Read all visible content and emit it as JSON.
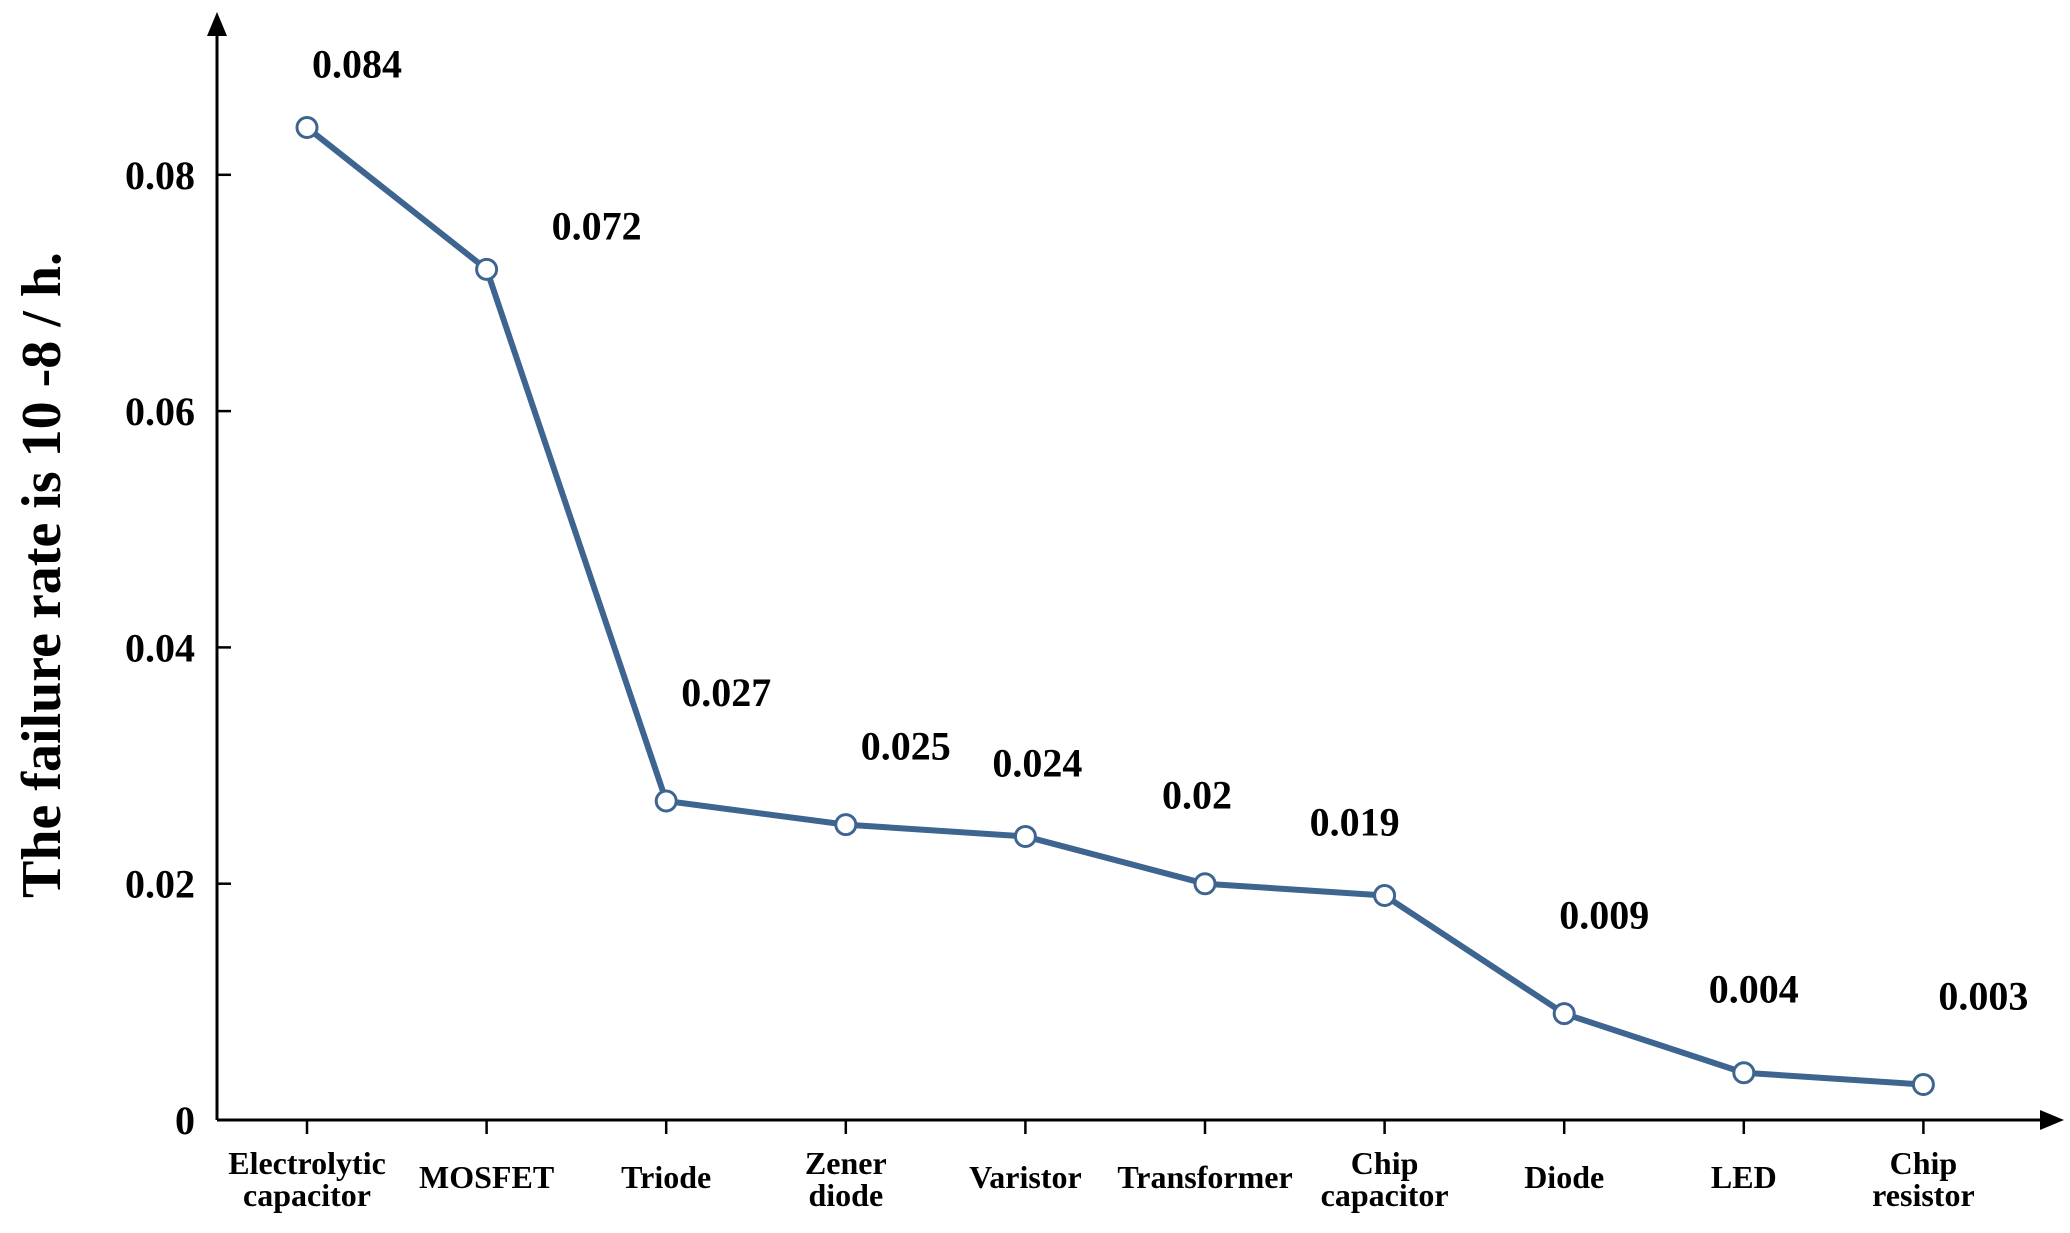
{
  "chart_data": {
    "type": "line",
    "categories": [
      [
        "Electrolytic",
        "capacitor"
      ],
      [
        "MOSFET"
      ],
      [
        "Triode"
      ],
      [
        "Zener",
        "diode"
      ],
      [
        "Varistor"
      ],
      [
        "Transformer"
      ],
      [
        "Chip",
        "capacitor"
      ],
      [
        "Diode"
      ],
      [
        "LED"
      ],
      [
        "Chip",
        "resistor"
      ]
    ],
    "values": [
      0.084,
      0.072,
      0.027,
      0.025,
      0.024,
      0.02,
      0.019,
      0.009,
      0.004,
      0.003
    ],
    "data_labels": [
      "0.084",
      "0.072",
      "0.027",
      "0.025",
      "0.024",
      "0.02",
      "0.019",
      "0.009",
      "0.004",
      "0.003"
    ],
    "ylabel": "The failure rate is 10 -8 / h.",
    "xlabel": "",
    "ylim": [
      0,
      0.094
    ],
    "yticks": [
      0,
      0.02,
      0.04,
      0.06,
      0.08
    ],
    "ytick_labels": [
      "0",
      "0.02",
      "0.04",
      "0.06",
      "0.08"
    ],
    "grid": false,
    "legend": "none",
    "colors": {
      "line": "#3d6590",
      "marker_edge": "#3d6590",
      "marker_fill": "#ffffff",
      "axis": "#000000"
    }
  }
}
